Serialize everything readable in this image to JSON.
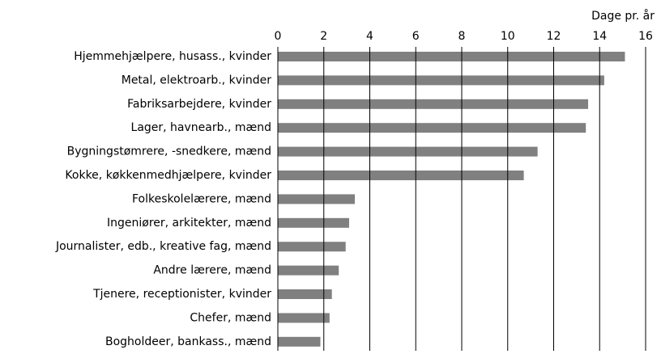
{
  "chart_data": {
    "type": "bar",
    "orientation": "horizontal",
    "x_label": "Dage pr. år",
    "categories": [
      "Hjemmehjælpere, husass., kvinder",
      "Metal, elektroarb., kvinder",
      "Fabriksarbejdere, kvinder",
      "Lager, havnearb., mænd",
      "Bygningstømrere, -snedkere, mænd",
      "Kokke, køkkenmedhjælpere, kvinder",
      "Folkeskolelærere, mænd",
      "Ingeniører, arkitekter, mænd",
      "Journalister, edb., kreative fag, mænd",
      "Andre lærere, mænd",
      "Tjenere, receptionister, kvinder",
      "Chefer, mænd",
      "Bogholdeer, bankass., mænd"
    ],
    "values": [
      15.1,
      14.2,
      13.5,
      13.4,
      11.3,
      10.7,
      3.35,
      3.1,
      2.95,
      2.65,
      2.35,
      2.25,
      1.85
    ],
    "color": "#808080",
    "xlim": [
      0,
      16
    ],
    "xticks": [
      0,
      2,
      4,
      6,
      8,
      10,
      12,
      14,
      16
    ],
    "grid": true
  }
}
